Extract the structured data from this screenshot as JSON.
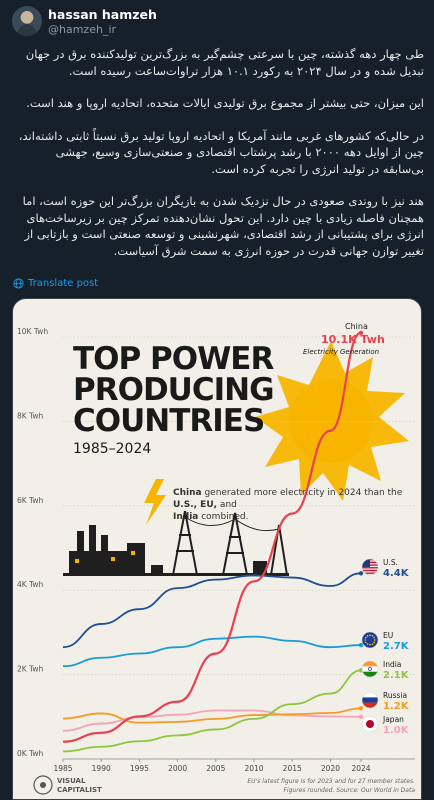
{
  "tweet": {
    "display_name": "hassan hamzeh",
    "handle": "@hamzeh_ir",
    "paragraphs": [
      "طی چهار دهه گذشته، چین با سرعتی چشم‌گیر به بزرگ‌ترین تولیدکننده برق در جهان تبدیل شده و در سال ۲۰۲۴ به رکورد ۱۰.۱ هزار تراوات‌ساعت رسیده است.",
      "این میزان، حتی بیشتر از مجموع برق تولیدی ایالات متحده، اتحادیه اروپا و هند است.",
      "در حالی‌که کشورهای غربی مانند آمریکا و اتحادیه اروپا تولید برق نسبتاً ثابتی داشته‌اند، چین از اوایل دهه ۲۰۰۰ با رشد پرشتاب اقتصادی و صنعتی‌سازی وسیع، جهشی بی‌سابقه در تولید انرژی را تجربه کرده است.",
      "هند نیز با روندی صعودی در حال نزدیک شدن به بازیگران بزرگ‌تر این حوزه است، اما همچنان فاصله زیادی با چین دارد. این تحول نشان‌دهنده تمرکز چین بر زیرساخت‌های انرژی برای پشتیبانی از رشد اقتصادی، شهرنشینی و توسعه صنعتی است و بازتابی از تغییر توازن جهانی قدرت در حوزه انرژی به سمت شرق آسیاست."
    ],
    "translate_label": "Translate post"
  },
  "chart_data": {
    "type": "line",
    "title_lines": [
      "TOP POWER",
      "PRODUCING",
      "COUNTRIES"
    ],
    "subtitle": "1985–2024",
    "x": [
      1985,
      1990,
      1995,
      2000,
      2005,
      2010,
      2015,
      2020,
      2024
    ],
    "xticks": [
      "1985",
      "1990",
      "1995",
      "2000",
      "2005",
      "2010",
      "2015",
      "2020",
      "2024"
    ],
    "yticks": [
      "0K Twh",
      "2K Twh",
      "4K Twh",
      "6K Twh",
      "8K Twh",
      "10K Twh"
    ],
    "ylim": [
      0,
      10000
    ],
    "xlim": [
      1985,
      2024
    ],
    "series": [
      {
        "name": "China",
        "color": "#e8414f",
        "values": [
          410,
          621,
          1008,
          1356,
          2500,
          4208,
          5815,
          7779,
          10100
        ]
      },
      {
        "name": "U.S.",
        "color": "#1f4f93",
        "values": [
          2650,
          3200,
          3550,
          4050,
          4250,
          4350,
          4300,
          4100,
          4400
        ]
      },
      {
        "name": "EU",
        "color": "#1a9bd6",
        "values": [
          2200,
          2400,
          2500,
          2650,
          2850,
          2900,
          2800,
          2650,
          2700
        ]
      },
      {
        "name": "India",
        "color": "#8cc63f",
        "values": [
          180,
          290,
          420,
          560,
          700,
          950,
          1300,
          1550,
          2100
        ]
      },
      {
        "name": "Russia",
        "color": "#f59a23",
        "values": [
          960,
          1080,
          860,
          880,
          950,
          1040,
          1060,
          1090,
          1200
        ]
      },
      {
        "name": "Japan",
        "color": "#f2a4b8",
        "values": [
          670,
          840,
          990,
          1050,
          1150,
          1150,
          1030,
          1010,
          1000
        ]
      }
    ],
    "end_labels": [
      {
        "name": "China",
        "value": "10.1K Twh",
        "note": "Electricity Generation"
      },
      {
        "name": "U.S.",
        "value": "4.4K"
      },
      {
        "name": "EU",
        "value": "2.7K"
      },
      {
        "name": "India",
        "value": "2.1K"
      },
      {
        "name": "Russia",
        "value": "1.2K"
      },
      {
        "name": "Japan",
        "value": "1.0K"
      }
    ],
    "annotation": {
      "prefix": "China",
      "middle1": " generated more electricity in 2024 than the ",
      "strong": "U.S., EU,",
      "middle2": " and ",
      "strong2": "India",
      "suffix": " combined."
    },
    "footnote_lines": [
      "EU's latest figure is for 2023 and for 27 member states.",
      "Figures rounded. Source: Our World in Data"
    ],
    "brand_lines": [
      "VISUAL",
      "CAPITALIST"
    ],
    "colors": {
      "background": "#f1efe8",
      "title": "#1a1a1a",
      "sun": "#f7b500",
      "grid": "#cfcac0"
    }
  }
}
